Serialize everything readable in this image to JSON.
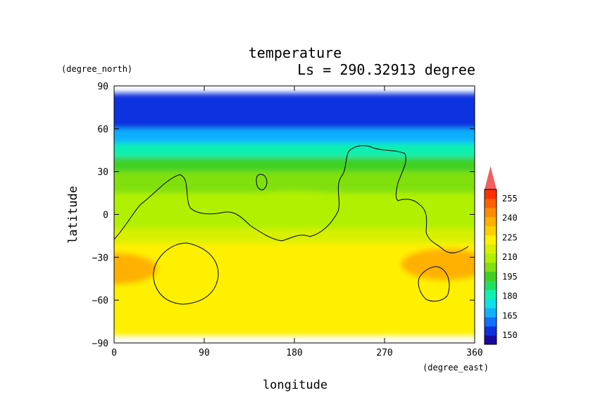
{
  "chart_data": {
    "type": "heatmap",
    "title": "temperature",
    "subtitle": "Ls = 290.32913 degree",
    "xlabel": "longitude",
    "ylabel": "latitude",
    "xunit": "(degree_east)",
    "yunit": "(degree_north)",
    "xlim": [
      0,
      360
    ],
    "ylim": [
      -90,
      90
    ],
    "xticks": [
      "0",
      "90",
      "180",
      "270",
      "360"
    ],
    "yticks": [
      "90",
      "60",
      "30",
      "0",
      "−30",
      "−60",
      "−90"
    ],
    "colorbar": {
      "labels": [
        "255",
        "240",
        "225",
        "210",
        "195",
        "180",
        "165",
        "150"
      ],
      "colors": [
        "#1a0aa0",
        "#1030e0",
        "#1070ff",
        "#10b0ff",
        "#10e0e8",
        "#10f0b0",
        "#20e060",
        "#40d020",
        "#80e010",
        "#b0f000",
        "#d8f000",
        "#fff000",
        "#ffd000",
        "#ffb000",
        "#ff8c00",
        "#ff6000",
        "#ff3000",
        "#f06060"
      ]
    },
    "grid": false,
    "latitude_bands": [
      {
        "lat_max": 85,
        "lat_min": 60,
        "temperature": 150
      },
      {
        "lat_max": 60,
        "lat_min": 50,
        "temperature": 170
      },
      {
        "lat_max": 50,
        "lat_min": 40,
        "temperature": 185
      },
      {
        "lat_max": 40,
        "lat_min": 30,
        "temperature": 197
      },
      {
        "lat_max": 30,
        "lat_min": 15,
        "temperature": 208
      },
      {
        "lat_max": 15,
        "lat_min": -10,
        "temperature": 215
      },
      {
        "lat_max": -10,
        "lat_min": -20,
        "temperature": 222
      },
      {
        "lat_max": -20,
        "lat_min": -85,
        "temperature": 228
      }
    ],
    "regional_features": [
      {
        "lon_center": 180,
        "lat_center": 5,
        "temperature": 213
      },
      {
        "lon_center": 0,
        "lat_center": -38,
        "temperature": 240
      },
      {
        "lon_center": 330,
        "lat_center": -35,
        "temperature": 240
      }
    ],
    "topography_contours": true
  }
}
